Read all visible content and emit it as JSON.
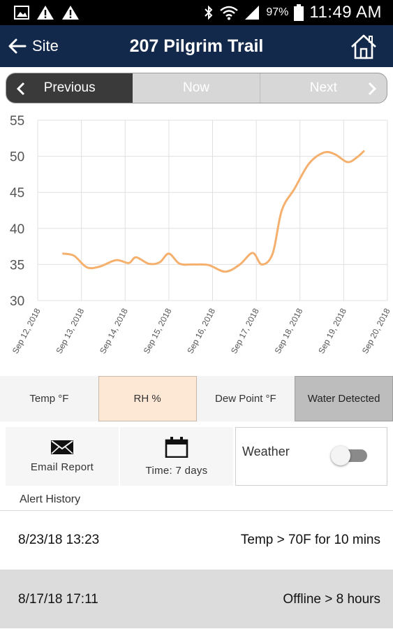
{
  "status_bar": {
    "time": "11:49 AM",
    "battery_percent": "97%",
    "icons": [
      "image-icon",
      "alert-icon",
      "alert-icon",
      "bluetooth-icon",
      "wifi-icon",
      "signal-icon",
      "battery-icon"
    ]
  },
  "header": {
    "back_label": "Site",
    "title": "207 Pilgrim Trail"
  },
  "period_nav": {
    "previous": "Previous",
    "now": "Now",
    "next": "Next"
  },
  "chart_data": {
    "type": "line",
    "title": "",
    "xlabel": "",
    "ylabel": "",
    "y_ticks": [
      "30",
      "35",
      "40",
      "45",
      "50",
      "55"
    ],
    "ylim": [
      30,
      55
    ],
    "x_ticks": [
      "Sep 12, 2018",
      "Sep 13, 2018",
      "Sep 14, 2018",
      "Sep 15, 2018",
      "Sep 16, 2018",
      "Sep 17, 2018",
      "Sep 18, 2018",
      "Sep 19, 2018",
      "Sep 20, 2018"
    ],
    "xlim": [
      "2018-09-12",
      "2018-09-20"
    ],
    "grid": true,
    "legend": "none",
    "series": [
      {
        "color": "#f5b06e",
        "points": [
          [
            "2018-09-12 14:00",
            36.5
          ],
          [
            "2018-09-12 20:00",
            36.2
          ],
          [
            "2018-09-13 03:00",
            34.6
          ],
          [
            "2018-09-13 10:00",
            34.7
          ],
          [
            "2018-09-13 19:00",
            35.6
          ],
          [
            "2018-09-14 02:00",
            35.2
          ],
          [
            "2018-09-14 06:00",
            36.0
          ],
          [
            "2018-09-14 13:00",
            35.1
          ],
          [
            "2018-09-14 19:00",
            35.3
          ],
          [
            "2018-09-15 00:00",
            36.5
          ],
          [
            "2018-09-15 06:00",
            35.1
          ],
          [
            "2018-09-15 14:00",
            35.0
          ],
          [
            "2018-09-15 22:00",
            34.9
          ],
          [
            "2018-09-16 07:00",
            34.0
          ],
          [
            "2018-09-16 15:00",
            35.0
          ],
          [
            "2018-09-16 22:00",
            36.6
          ],
          [
            "2018-09-17 03:00",
            35.0
          ],
          [
            "2018-09-17 09:00",
            36.5
          ],
          [
            "2018-09-17 14:00",
            42.5
          ],
          [
            "2018-09-17 21:00",
            45.5
          ],
          [
            "2018-09-18 05:00",
            49.0
          ],
          [
            "2018-09-18 13:00",
            50.5
          ],
          [
            "2018-09-18 19:00",
            50.3
          ],
          [
            "2018-09-19 02:00",
            49.2
          ],
          [
            "2018-09-19 07:00",
            49.8
          ],
          [
            "2018-09-19 11:00",
            50.7
          ]
        ]
      }
    ]
  },
  "metric_tabs": [
    {
      "label": "Temp °F",
      "state": "default"
    },
    {
      "label": "RH %",
      "state": "selected"
    },
    {
      "label": "Dew Point °F",
      "state": "default"
    },
    {
      "label": "Water Detected",
      "state": "disabled"
    }
  ],
  "actions": {
    "email_label": "Email Report",
    "time_label": "Time: 7 days",
    "weather_label": "Weather",
    "weather_on": false
  },
  "alerts": {
    "heading": "Alert History",
    "rows": [
      {
        "time": "8/23/18 13:23",
        "message": "Temp > 70F for 10 mins"
      },
      {
        "time": "8/17/18 17:11",
        "message": "Offline > 8 hours"
      }
    ]
  },
  "colors": {
    "header_bg": "#13294b",
    "line": "#f5b06e",
    "selected_tab": "#fde8d6",
    "disabled_tab": "#bdbdbd"
  }
}
